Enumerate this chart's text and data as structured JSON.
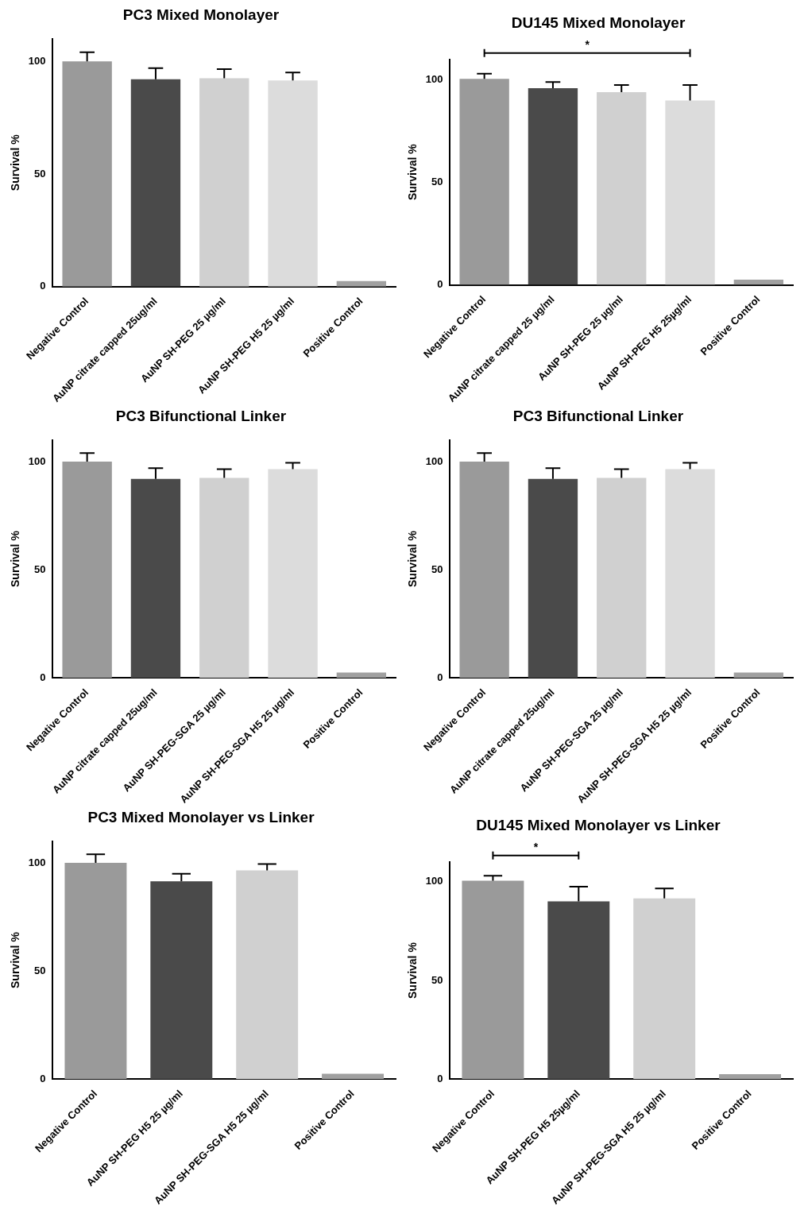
{
  "chart_data": [
    {
      "type": "bar",
      "title": "PC3 Mixed Monolayer",
      "ylabel": "Survival %",
      "categories": [
        "Negative Control",
        "AuNP citrate capped 25ug/ml",
        "AuNP SH-PEG 25 µg/ml",
        "AuNP SH-PEG H5 25 µg/ml",
        "Positive Control"
      ],
      "values": [
        100,
        92,
        92.5,
        91.5,
        2.5
      ],
      "errors": [
        [
          100,
          104
        ],
        [
          92,
          97
        ],
        [
          92.5,
          96.5
        ],
        [
          91.5,
          95
        ],
        null
      ],
      "colors": [
        "#9a9a9a",
        "#4a4a4a",
        "#d0d0d0",
        "#dcdcdc",
        "#a0a0a0"
      ],
      "ylim": [
        0,
        110
      ],
      "yticks": [
        0,
        50,
        100
      ]
    },
    {
      "type": "bar",
      "title": "DU145 Mixed Monolayer",
      "ylabel": "Survival %",
      "categories": [
        "Negative Control",
        "AuNP citrate capped 25 µg/ml",
        "AuNP SH-PEG 25 µg/ml",
        "AuNP SH-PEG H5 25µg/ml",
        "Positive Control"
      ],
      "values": [
        100.5,
        96,
        94,
        90,
        2.5
      ],
      "errors": [
        [
          100.5,
          103
        ],
        [
          96,
          99
        ],
        [
          94,
          97.5
        ],
        [
          90,
          97.5
        ],
        null
      ],
      "colors": [
        "#9a9a9a",
        "#4a4a4a",
        "#d0d0d0",
        "#dcdcdc",
        "#a0a0a0"
      ],
      "ylim": [
        0,
        110
      ],
      "yticks": [
        0,
        50,
        100
      ],
      "annotations": [
        "*"
      ]
    },
    {
      "type": "bar",
      "title": "PC3 Bifunctional Linker",
      "ylabel": "Survival %",
      "categories": [
        "Negative Control",
        "AuNP citrate capped 25ug/ml",
        "AuNP SH-PEG-SGA 25 µg/ml",
        "AuNP SH-PEG-SGA H5 25 µg/ml",
        "Positive Control"
      ],
      "values": [
        100,
        92,
        92.5,
        96.5,
        2.5
      ],
      "errors": [
        [
          100,
          104
        ],
        [
          92,
          97
        ],
        [
          92.5,
          96.5
        ],
        [
          96.5,
          99.5
        ],
        null
      ],
      "colors": [
        "#9a9a9a",
        "#4a4a4a",
        "#d0d0d0",
        "#dcdcdc",
        "#a0a0a0"
      ],
      "ylim": [
        0,
        110
      ],
      "yticks": [
        0,
        50,
        100
      ]
    },
    {
      "type": "bar",
      "title": "PC3 Bifunctional Linker",
      "ylabel": "Survival %",
      "categories": [
        "Negative Control",
        "AuNP citrate capped 25ug/ml",
        "AuNP SH-PEG-SGA 25 µg/ml",
        "AuNP SH-PEG-SGA H5 25 µg/ml",
        "Positive Control"
      ],
      "values": [
        100,
        92,
        92.5,
        96.5,
        2.5
      ],
      "errors": [
        [
          100,
          104
        ],
        [
          92,
          97
        ],
        [
          92.5,
          96.5
        ],
        [
          96.5,
          99.5
        ],
        null
      ],
      "colors": [
        "#9a9a9a",
        "#4a4a4a",
        "#d0d0d0",
        "#dcdcdc",
        "#a0a0a0"
      ],
      "ylim": [
        0,
        110
      ],
      "yticks": [
        0,
        50,
        100
      ]
    },
    {
      "type": "bar",
      "title": "PC3 Mixed Monolayer vs Linker",
      "ylabel": "Survival %",
      "categories": [
        "Negative Control",
        "AuNP SH-PEG H5 25 µg/ml",
        "AuNP SH-PEG-SGA H5 25 µg/ml",
        "Positive Control"
      ],
      "values": [
        100,
        91.5,
        96.5,
        2.5
      ],
      "errors": [
        [
          100,
          104
        ],
        [
          91.5,
          95
        ],
        [
          96.5,
          99.5
        ],
        null
      ],
      "colors": [
        "#9a9a9a",
        "#4a4a4a",
        "#d0d0d0",
        "#a0a0a0"
      ],
      "ylim": [
        0,
        110
      ],
      "yticks": [
        0,
        50,
        100
      ]
    },
    {
      "type": "bar",
      "title": "DU145 Mixed Monolayer vs Linker",
      "ylabel": "Survival %",
      "categories": [
        "Negative Control",
        "AuNP SH-PEG H5 25µg/ml",
        "AuNP SH-PEG-SGA H5 25 µg/ml",
        "Positive Control"
      ],
      "values": [
        100.5,
        90,
        91.5,
        2.5
      ],
      "errors": [
        [
          100.5,
          103
        ],
        [
          90,
          97.5
        ],
        [
          91.5,
          96.5
        ],
        null
      ],
      "colors": [
        "#9a9a9a",
        "#4a4a4a",
        "#d0d0d0",
        "#a0a0a0"
      ],
      "ylim": [
        0,
        110
      ],
      "yticks": [
        0,
        50,
        100
      ],
      "annotations": [
        "*"
      ]
    }
  ]
}
